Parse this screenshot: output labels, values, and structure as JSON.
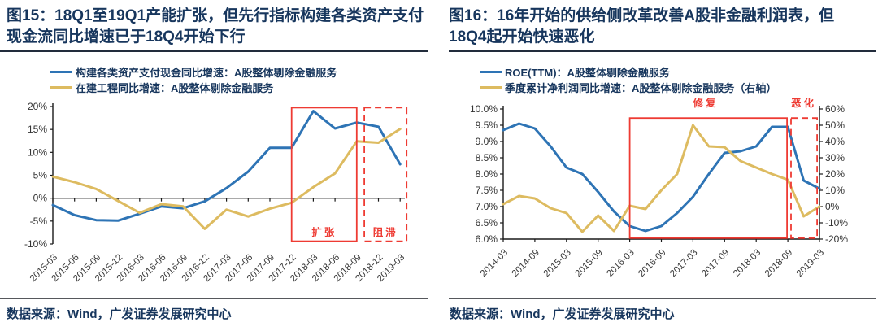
{
  "figures": [
    {
      "title": "图15：18Q1至19Q1产能扩张，但先行指标构建各类资产支付现金流同比增速已于18Q4开始下行",
      "source": "数据来源：Wind，广发证券发展研究中心"
    },
    {
      "title": "图16：16年开始的供给侧改革改善A股非金融利润表，但18Q4起开始快速恶化",
      "source": "数据来源：Wind，广发证券发展研究中心"
    }
  ],
  "colors": {
    "title_navy": "#17365d",
    "line_blue": "#2e74b5",
    "line_yellow": "#ddbb60",
    "annotation_red": "#ee3b33",
    "axis": "#1a1a1a"
  },
  "chart_data": [
    {
      "type": "line",
      "title": "图15：18Q1至19Q1产能扩张，但先行指标构建各类资产支付现金流同比增速已于18Q4开始下行",
      "categories": [
        "2015-03",
        "2015-06",
        "2015-09",
        "2015-12",
        "2016-03",
        "2016-06",
        "2016-09",
        "2016-12",
        "2017-03",
        "2017-06",
        "2017-09",
        "2017-12",
        "2018-03",
        "2018-06",
        "2018-09",
        "2018-12",
        "2019-03"
      ],
      "series": [
        {
          "name": "构建各类资产支付现金同比增速：A股整体剔除金融服务",
          "axis": "left",
          "color": "#2e74b5",
          "values": [
            -1.5,
            -3.7,
            -4.8,
            -4.9,
            -3.4,
            -1.8,
            -2.2,
            -0.7,
            2.2,
            5.8,
            11.0,
            11.0,
            19.0,
            15.2,
            16.5,
            15.6,
            7.4
          ]
        },
        {
          "name": "在建工程同比增速：A股整体剔除金融服务",
          "axis": "left",
          "color": "#ddbb60",
          "values": [
            4.7,
            3.5,
            2.0,
            -0.6,
            -3.2,
            -1.3,
            -1.8,
            -6.7,
            -2.5,
            -4.0,
            -2.3,
            -1.0,
            2.4,
            5.4,
            12.4,
            12.1,
            15.1
          ]
        }
      ],
      "ylim": [
        -10,
        20
      ],
      "yticks": [
        "20%",
        "15%",
        "10%",
        "5%",
        "0%",
        "-5%",
        "-10%"
      ],
      "x_axis_at_zero": true,
      "x_label_every": 1,
      "grid": false,
      "legend_position": "top",
      "annotations": {
        "boxes": [
          {
            "style": "solid",
            "x0": 11,
            "x1": 14,
            "y0": -9.4,
            "y1": 19.75,
            "label": "扩张",
            "label_x": 12.5,
            "label_y": -8.2
          },
          {
            "style": "dashed",
            "x0": 14.35,
            "x1": 16.3,
            "y0": -9.4,
            "y1": 19.75,
            "label": "阻滞",
            "label_x": 15.33,
            "label_y": -8.2
          }
        ]
      }
    },
    {
      "type": "line",
      "dual_axis": true,
      "title": "图16：16年开始的供给侧改革改善A股非金融利润表，但18Q4起开始快速恶化",
      "categories": [
        "2014-03",
        "2014-06",
        "2014-09",
        "2014-12",
        "2015-03",
        "2015-06",
        "2015-09",
        "2015-12",
        "2016-03",
        "2016-06",
        "2016-09",
        "2016-12",
        "2017-03",
        "2017-06",
        "2017-09",
        "2017-12",
        "2018-03",
        "2018-06",
        "2018-09",
        "2018-12",
        "2019-03"
      ],
      "series": [
        {
          "name": "ROE(TTM)：A股整体剔除金融服务",
          "axis": "left",
          "color": "#2e74b5",
          "values": [
            9.35,
            9.55,
            9.4,
            8.85,
            8.2,
            8.0,
            7.45,
            6.85,
            6.4,
            6.25,
            6.4,
            6.8,
            7.3,
            8.0,
            8.65,
            8.7,
            8.85,
            9.45,
            9.45,
            7.8,
            7.55
          ]
        },
        {
          "name": "季度累计净利润同比增速：A股整体剔除金融服务（右轴）",
          "axis": "right",
          "color": "#ddbb60",
          "values": [
            1.5,
            6.5,
            5.0,
            -1.0,
            -4.0,
            -15.5,
            -5.5,
            -15.0,
            0.5,
            -1.5,
            10.0,
            20.0,
            50.0,
            37.0,
            36.5,
            28.0,
            24.0,
            20.0,
            16.5,
            -6.0,
            0.0
          ]
        }
      ],
      "ylim_left": [
        6.0,
        10.0
      ],
      "ylim_right": [
        -20,
        60
      ],
      "yticks_left": [
        "10.0%",
        "9.5%",
        "9.0%",
        "8.5%",
        "8.0%",
        "7.5%",
        "7.0%",
        "6.5%",
        "6.0%"
      ],
      "yticks_right": [
        "60%",
        "50%",
        "40%",
        "30%",
        "20%",
        "10%",
        "0%",
        "-10%",
        "-20%"
      ],
      "x_label_every": 2,
      "grid": false,
      "legend_position": "top",
      "annotations": {
        "boxes": [
          {
            "style": "solid",
            "x0": 8,
            "x1": 17.95,
            "y0": 6.03,
            "y1": 9.72,
            "label": "修复",
            "label_x": 12.8,
            "label_y": 10.07
          },
          {
            "style": "dashed",
            "x0": 18.2,
            "x1": 19.85,
            "y0": 6.03,
            "y1": 9.72,
            "label": "恶化",
            "label_x": 19.0,
            "label_y": 10.07
          }
        ]
      }
    }
  ]
}
